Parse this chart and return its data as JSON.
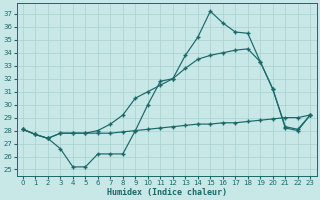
{
  "xlabel": "Humidex (Indice chaleur)",
  "bg_color": "#c8e8e8",
  "grid_color": "#a8d0d0",
  "line_color": "#1a6868",
  "xlim": [
    -0.5,
    23.5
  ],
  "ylim": [
    24.5,
    37.8
  ],
  "yticks": [
    25,
    26,
    27,
    28,
    29,
    30,
    31,
    32,
    33,
    34,
    35,
    36,
    37
  ],
  "xticks": [
    0,
    1,
    2,
    3,
    4,
    5,
    6,
    7,
    8,
    9,
    10,
    11,
    12,
    13,
    14,
    15,
    16,
    17,
    18,
    19,
    20,
    21,
    22,
    23
  ],
  "line1_x": [
    0,
    1,
    2,
    3,
    4,
    5,
    6,
    7,
    8,
    9,
    10,
    11,
    12,
    13,
    14,
    15,
    16,
    17,
    18,
    19,
    20,
    21,
    22,
    23
  ],
  "line1_y": [
    28.1,
    27.7,
    27.4,
    27.8,
    27.8,
    27.8,
    27.8,
    27.8,
    27.9,
    28.0,
    28.1,
    28.2,
    28.3,
    28.4,
    28.5,
    28.5,
    28.6,
    28.6,
    28.7,
    28.8,
    28.9,
    29.0,
    29.0,
    29.2
  ],
  "line2_x": [
    0,
    1,
    2,
    3,
    4,
    5,
    6,
    7,
    8,
    9,
    10,
    11,
    12,
    13,
    14,
    15,
    16,
    17,
    18,
    19,
    20,
    21,
    22,
    23
  ],
  "line2_y": [
    28.1,
    27.7,
    27.4,
    27.8,
    27.8,
    27.8,
    28.0,
    28.5,
    29.2,
    30.5,
    31.0,
    31.5,
    32.0,
    32.8,
    33.5,
    33.8,
    34.0,
    34.2,
    34.3,
    33.3,
    31.2,
    28.2,
    28.0,
    29.2
  ],
  "line3_x": [
    0,
    1,
    2,
    3,
    4,
    5,
    6,
    7,
    8,
    9,
    10,
    11,
    12,
    13,
    14,
    15,
    16,
    17,
    18,
    19,
    20,
    21,
    22,
    23
  ],
  "line3_y": [
    28.1,
    27.7,
    27.4,
    26.6,
    25.2,
    25.2,
    26.2,
    26.2,
    26.2,
    28.0,
    30.0,
    31.8,
    32.0,
    33.8,
    35.2,
    37.2,
    36.3,
    35.6,
    35.5,
    33.3,
    31.2,
    28.3,
    28.1,
    29.2
  ]
}
